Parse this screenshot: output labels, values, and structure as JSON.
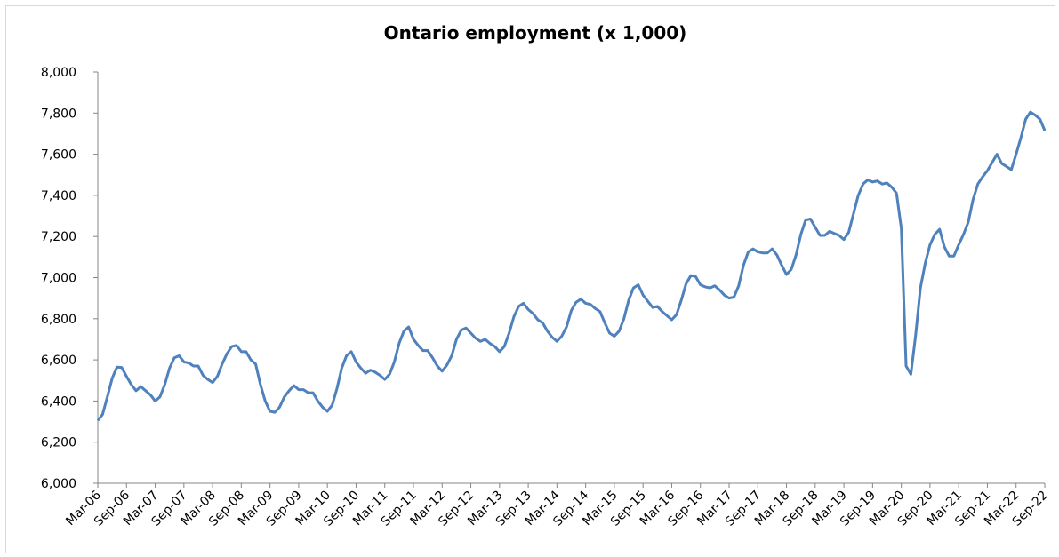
{
  "chart_data": {
    "type": "line",
    "title": "Ontario employment (x 1,000)",
    "categories": [
      "Mar-06",
      null,
      null,
      null,
      null,
      null,
      "Sep-06",
      null,
      null,
      null,
      null,
      null,
      "Mar-07",
      null,
      null,
      null,
      null,
      null,
      "Sep-07",
      null,
      null,
      null,
      null,
      null,
      "Mar-08",
      null,
      null,
      null,
      null,
      null,
      "Sep-08",
      null,
      null,
      null,
      null,
      null,
      "Mar-09",
      null,
      null,
      null,
      null,
      null,
      "Sep-09",
      null,
      null,
      null,
      null,
      null,
      "Mar-10",
      null,
      null,
      null,
      null,
      null,
      "Sep-10",
      null,
      null,
      null,
      null,
      null,
      "Mar-11",
      null,
      null,
      null,
      null,
      null,
      "Sep-11",
      null,
      null,
      null,
      null,
      null,
      "Mar-12",
      null,
      null,
      null,
      null,
      null,
      "Sep-12",
      null,
      null,
      null,
      null,
      null,
      "Mar-13",
      null,
      null,
      null,
      null,
      null,
      "Sep-13",
      null,
      null,
      null,
      null,
      null,
      "Mar-14",
      null,
      null,
      null,
      null,
      null,
      "Sep-14",
      null,
      null,
      null,
      null,
      null,
      "Mar-15",
      null,
      null,
      null,
      null,
      null,
      "Sep-15",
      null,
      null,
      null,
      null,
      null,
      "Mar-16",
      null,
      null,
      null,
      null,
      null,
      "Sep-16",
      null,
      null,
      null,
      null,
      null,
      "Mar-17",
      null,
      null,
      null,
      null,
      null,
      "Sep-17",
      null,
      null,
      null,
      null,
      null,
      "Mar-18",
      null,
      null,
      null,
      null,
      null,
      "Sep-18",
      null,
      null,
      null,
      null,
      null,
      "Mar-19",
      null,
      null,
      null,
      null,
      null,
      "Sep-19",
      null,
      null,
      null,
      null,
      null,
      "Mar-20",
      null,
      null,
      null,
      null,
      null,
      "Sep-20",
      null,
      null,
      null,
      null,
      null,
      "Mar-21",
      null,
      null,
      null,
      null,
      null,
      "Sep-21",
      null,
      null,
      null,
      null,
      null,
      "Mar-22",
      null,
      null,
      null,
      null,
      null,
      "Sep-22"
    ],
    "values": [
      6305,
      6335,
      6420,
      6510,
      6565,
      6563,
      6520,
      6480,
      6450,
      6470,
      6450,
      6430,
      6400,
      6420,
      6480,
      6560,
      6610,
      6620,
      6590,
      6585,
      6570,
      6570,
      6525,
      6505,
      6490,
      6520,
      6580,
      6630,
      6665,
      6670,
      6640,
      6640,
      6600,
      6580,
      6480,
      6400,
      6350,
      6345,
      6370,
      6420,
      6450,
      6475,
      6455,
      6455,
      6440,
      6440,
      6400,
      6370,
      6350,
      6380,
      6460,
      6560,
      6620,
      6640,
      6590,
      6560,
      6535,
      6550,
      6540,
      6525,
      6505,
      6530,
      6590,
      6680,
      6740,
      6760,
      6700,
      6670,
      6645,
      6645,
      6610,
      6570,
      6545,
      6575,
      6620,
      6700,
      6745,
      6755,
      6730,
      6705,
      6690,
      6700,
      6680,
      6665,
      6640,
      6665,
      6730,
      6810,
      6860,
      6875,
      6845,
      6825,
      6795,
      6780,
      6740,
      6710,
      6690,
      6715,
      6760,
      6840,
      6880,
      6895,
      6875,
      6870,
      6850,
      6835,
      6780,
      6730,
      6715,
      6740,
      6800,
      6890,
      6950,
      6965,
      6915,
      6885,
      6855,
      6860,
      6835,
      6815,
      6795,
      6820,
      6890,
      6970,
      7010,
      7005,
      6965,
      6955,
      6950,
      6960,
      6940,
      6915,
      6900,
      6905,
      6960,
      7060,
      7125,
      7140,
      7125,
      7120,
      7120,
      7140,
      7110,
      7060,
      7015,
      7040,
      7110,
      7210,
      7280,
      7285,
      7245,
      7205,
      7205,
      7225,
      7215,
      7205,
      7185,
      7220,
      7310,
      7400,
      7455,
      7475,
      7465,
      7470,
      7455,
      7460,
      7440,
      7410,
      7240,
      6570,
      6530,
      6720,
      6950,
      7070,
      7160,
      7210,
      7235,
      7150,
      7105,
      7105,
      7160,
      7210,
      7270,
      7380,
      7455,
      7490,
      7520,
      7560,
      7600,
      7555,
      7540,
      7525,
      7600,
      7680,
      7770,
      7805,
      7790,
      7770,
      7715
    ],
    "color": "#4f81bd",
    "ylim": [
      6000,
      8000
    ],
    "yticks": [
      {
        "value": 6000,
        "label": "6,000"
      },
      {
        "value": 6200,
        "label": "6,200"
      },
      {
        "value": 6400,
        "label": "6,400"
      },
      {
        "value": 6600,
        "label": "6,600"
      },
      {
        "value": 6800,
        "label": "6,800"
      },
      {
        "value": 7000,
        "label": "7,000"
      },
      {
        "value": 7200,
        "label": "7,200"
      },
      {
        "value": 7400,
        "label": "7,400"
      },
      {
        "value": 7600,
        "label": "7,600"
      },
      {
        "value": 7800,
        "label": "7,800"
      },
      {
        "value": 8000,
        "label": "8,000"
      }
    ],
    "grid": false
  }
}
